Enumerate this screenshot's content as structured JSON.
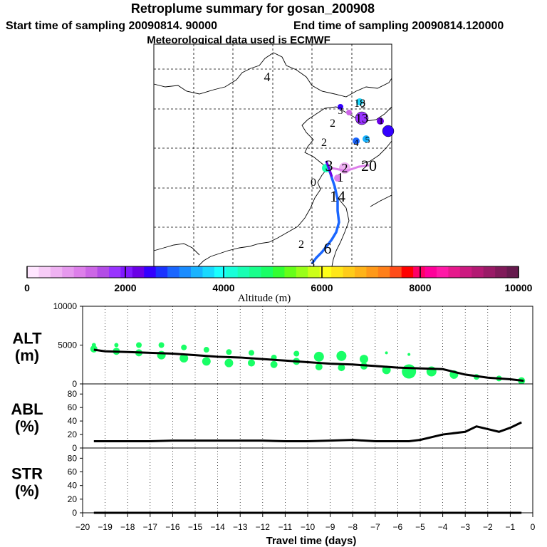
{
  "header": {
    "title": "Retroplume summary for gosan_200908",
    "start": "Start time of sampling 20090814. 90000",
    "end": "End time of sampling 20090814.120000",
    "met": "Meteorological data used is ECMWF"
  },
  "colorbar": {
    "colors": [
      "#ffe6ff",
      "#f7ccf7",
      "#efb2f2",
      "#e699ee",
      "#dd7fea",
      "#cc66e6",
      "#b34ce6",
      "#9933ff",
      "#8019ff",
      "#6a00e6",
      "#3300ff",
      "#1a33ff",
      "#1a66ff",
      "#1a8cff",
      "#19b3ff",
      "#19d9ff",
      "#19ffff",
      "#19ffd9",
      "#19ffb3",
      "#19ff8c",
      "#19ff66",
      "#33ff33",
      "#66ff19",
      "#99ff19",
      "#ccff19",
      "#ffff19",
      "#ffe619",
      "#ffcc19",
      "#ffb319",
      "#ff9919",
      "#ff7f19",
      "#ff4c19",
      "#ff0000",
      "#ff0066",
      "#ff0099",
      "#ff19a6",
      "#e6198c",
      "#cc1980",
      "#b31973",
      "#991a66",
      "#801a59",
      "#661a4d"
    ],
    "tick_labels": [
      "0",
      "2000",
      "4000",
      "6000",
      "8000",
      "10000"
    ],
    "label": "Altitude (m)"
  },
  "map": {
    "numbers": [
      {
        "t": "4",
        "c": "#000000"
      },
      {
        "t": "18",
        "c": "#19d9ff"
      },
      {
        "t": "3",
        "c": "#3300ff"
      },
      {
        "t": "2",
        "c": "#cc66e6"
      },
      {
        "t": "13",
        "c": "#9933ff"
      },
      {
        "t": "1",
        "c": "#3300ff"
      },
      {
        "t": "2",
        "c": "#dd7fea"
      },
      {
        "t": "4",
        "c": "#1a66ff"
      },
      {
        "t": "5",
        "c": "#19b3ff"
      },
      {
        "t": "3",
        "c": "#cc66e6"
      },
      {
        "t": "2",
        "c": "#dd7fea"
      },
      {
        "t": "20",
        "c": "#000000"
      },
      {
        "t": "1",
        "c": "#dd7fea"
      },
      {
        "t": "0",
        "c": "#000000"
      },
      {
        "t": "14",
        "c": "#000000"
      },
      {
        "t": "2",
        "c": "#000000"
      },
      {
        "t": "6",
        "c": "#000000"
      },
      {
        "t": "2",
        "c": "#dd7fea"
      },
      {
        "t": "3",
        "c": "#000000"
      }
    ]
  },
  "chart_data": [
    {
      "type": "line",
      "name": "ALT",
      "title_line1": "ALT",
      "title_line2": "(m)",
      "ylim": [
        0,
        10000
      ],
      "yticks": [
        0,
        5000,
        10000
      ],
      "xlim": [
        -20,
        0
      ],
      "x": [
        -19.5,
        -19,
        -18,
        -17,
        -16,
        -15,
        -14,
        -13,
        -12,
        -11,
        -10,
        -9,
        -8,
        -7,
        -6,
        -5,
        -4,
        -3,
        -2,
        -1,
        -0.4
      ],
      "mean_altitude": [
        4400,
        4200,
        4100,
        4000,
        3900,
        3700,
        3500,
        3400,
        3200,
        3000,
        2800,
        2600,
        2500,
        2300,
        2100,
        2000,
        1900,
        1200,
        800,
        600,
        400
      ],
      "clusters": [
        {
          "x": -19.5,
          "y": 4500,
          "r": 5
        },
        {
          "x": -19.5,
          "y": 5000,
          "r": 3
        },
        {
          "x": -18.5,
          "y": 4200,
          "r": 5
        },
        {
          "x": -18.5,
          "y": 5000,
          "r": 3
        },
        {
          "x": -17.5,
          "y": 4000,
          "r": 5
        },
        {
          "x": -17.5,
          "y": 5000,
          "r": 4
        },
        {
          "x": -16.5,
          "y": 3700,
          "r": 6
        },
        {
          "x": -16.5,
          "y": 5000,
          "r": 4
        },
        {
          "x": -15.5,
          "y": 3300,
          "r": 6
        },
        {
          "x": -15.5,
          "y": 4700,
          "r": 4
        },
        {
          "x": -14.5,
          "y": 2900,
          "r": 6
        },
        {
          "x": -14.5,
          "y": 4400,
          "r": 4
        },
        {
          "x": -13.5,
          "y": 2700,
          "r": 6
        },
        {
          "x": -13.5,
          "y": 4100,
          "r": 4
        },
        {
          "x": -12.5,
          "y": 2700,
          "r": 5
        },
        {
          "x": -12.5,
          "y": 4000,
          "r": 4
        },
        {
          "x": -11.5,
          "y": 2500,
          "r": 5
        },
        {
          "x": -11.5,
          "y": 3400,
          "r": 4
        },
        {
          "x": -10.5,
          "y": 2900,
          "r": 5
        },
        {
          "x": -10.5,
          "y": 3900,
          "r": 4
        },
        {
          "x": -9.5,
          "y": 3500,
          "r": 7
        },
        {
          "x": -9.5,
          "y": 2200,
          "r": 5
        },
        {
          "x": -8.5,
          "y": 3600,
          "r": 7
        },
        {
          "x": -8.5,
          "y": 2100,
          "r": 5
        },
        {
          "x": -7.5,
          "y": 3200,
          "r": 6
        },
        {
          "x": -7.5,
          "y": 2300,
          "r": 5
        },
        {
          "x": -6.5,
          "y": 1800,
          "r": 6
        },
        {
          "x": -6.5,
          "y": 4000,
          "r": 2
        },
        {
          "x": -5.5,
          "y": 1600,
          "r": 10
        },
        {
          "x": -5.5,
          "y": 3800,
          "r": 2
        },
        {
          "x": -4.5,
          "y": 1600,
          "r": 7
        },
        {
          "x": -3.5,
          "y": 1200,
          "r": 6
        },
        {
          "x": -2.5,
          "y": 900,
          "r": 4
        },
        {
          "x": -1.5,
          "y": 700,
          "r": 4
        },
        {
          "x": -0.5,
          "y": 400,
          "r": 5
        }
      ]
    },
    {
      "type": "line",
      "name": "ABL",
      "title_line1": "ABL",
      "title_line2": "(%)",
      "ylim": [
        0,
        95
      ],
      "yticks": [
        0,
        20,
        40,
        60,
        80
      ],
      "xlim": [
        -20,
        0
      ],
      "x": [
        -19.5,
        -17,
        -16,
        -13,
        -12,
        -11,
        -10,
        -9,
        -8,
        -7,
        -6,
        -5.5,
        -5,
        -4.5,
        -4,
        -3,
        -2.5,
        -2,
        -1.5,
        -1,
        -0.5
      ],
      "values": [
        10,
        10,
        11,
        11,
        11,
        10,
        10,
        11,
        12,
        10,
        10,
        10,
        12,
        16,
        20,
        24,
        32,
        28,
        24,
        30,
        38
      ]
    },
    {
      "type": "line",
      "name": "STR",
      "title_line1": "STR",
      "title_line2": "(%)",
      "ylim": [
        0,
        95
      ],
      "yticks": [
        0,
        20,
        40,
        60,
        80
      ],
      "xlim": [
        -20,
        0
      ],
      "x": [
        -19.5,
        -17,
        -15,
        -10,
        -5,
        -0.5
      ],
      "values": [
        0,
        0,
        0,
        0,
        0,
        0
      ]
    }
  ],
  "xaxis": {
    "tick_values": [
      -20,
      -19,
      -18,
      -17,
      -16,
      -15,
      -14,
      -13,
      -12,
      -11,
      -10,
      -9,
      -8,
      -7,
      -6,
      -5,
      -4,
      -3,
      -2,
      -1,
      0
    ],
    "tick_labels": [
      "−20",
      "−19",
      "−18",
      "−17",
      "−16",
      "−15",
      "−14",
      "−13",
      "−12",
      "−11",
      "−10",
      "−9",
      "−8",
      "−7",
      "−6",
      "−5",
      "−4",
      "−3",
      "−2",
      "−1",
      "0"
    ],
    "label": "Travel time (days)"
  }
}
